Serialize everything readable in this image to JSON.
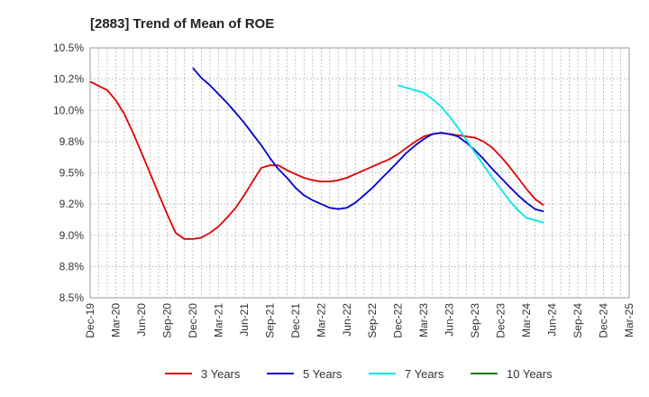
{
  "chart_data": {
    "type": "line",
    "title": "[2883]  Trend of Mean of ROE",
    "xlabel": "",
    "ylabel": "",
    "x_ticks": [
      "Dec-19",
      "Mar-20",
      "Jun-20",
      "Sep-20",
      "Dec-20",
      "Mar-21",
      "Jun-21",
      "Sep-21",
      "Dec-21",
      "Mar-22",
      "Jun-22",
      "Sep-22",
      "Dec-22",
      "Mar-23",
      "Jun-23",
      "Sep-23",
      "Dec-23",
      "Mar-24",
      "Jun-24",
      "Sep-24",
      "Dec-24",
      "Mar-25"
    ],
    "y_ticks": [
      "8.5%",
      "8.8%",
      "9.0%",
      "9.2%",
      "9.5%",
      "9.8%",
      "10.0%",
      "10.2%",
      "10.5%"
    ],
    "ylim": [
      8.5,
      10.5
    ],
    "y_tick_values": [
      8.5,
      8.75,
      9.0,
      9.25,
      9.5,
      9.75,
      10.0,
      10.25,
      10.5
    ],
    "grid": true,
    "legend_position": "bottom",
    "series": [
      {
        "name": "3 Years",
        "color": "#e00000",
        "points": [
          [
            0,
            10.23
          ],
          [
            0.67,
            10.16
          ],
          [
            1,
            10.08
          ],
          [
            1.33,
            9.97
          ],
          [
            1.67,
            9.82
          ],
          [
            2,
            9.66
          ],
          [
            2.33,
            9.5
          ],
          [
            2.67,
            9.33
          ],
          [
            3,
            9.17
          ],
          [
            3.33,
            9.02
          ],
          [
            3.67,
            8.97
          ],
          [
            4,
            8.97
          ],
          [
            4.33,
            8.98
          ],
          [
            4.67,
            9.02
          ],
          [
            5,
            9.07
          ],
          [
            5.33,
            9.14
          ],
          [
            5.67,
            9.22
          ],
          [
            6,
            9.32
          ],
          [
            6.33,
            9.43
          ],
          [
            6.67,
            9.54
          ],
          [
            7,
            9.56
          ],
          [
            7.33,
            9.56
          ],
          [
            7.67,
            9.52
          ],
          [
            8,
            9.49
          ],
          [
            8.33,
            9.46
          ],
          [
            8.67,
            9.44
          ],
          [
            9,
            9.43
          ],
          [
            9.33,
            9.43
          ],
          [
            9.67,
            9.44
          ],
          [
            10,
            9.46
          ],
          [
            10.33,
            9.49
          ],
          [
            10.67,
            9.52
          ],
          [
            11,
            9.55
          ],
          [
            11.33,
            9.58
          ],
          [
            11.67,
            9.61
          ],
          [
            12,
            9.65
          ],
          [
            12.33,
            9.7
          ],
          [
            12.67,
            9.75
          ],
          [
            13,
            9.79
          ],
          [
            13.33,
            9.81
          ],
          [
            13.67,
            9.82
          ],
          [
            14,
            9.81
          ],
          [
            14.33,
            9.8
          ],
          [
            14.67,
            9.79
          ],
          [
            15,
            9.78
          ],
          [
            15.33,
            9.75
          ],
          [
            15.67,
            9.7
          ],
          [
            16,
            9.63
          ],
          [
            16.33,
            9.55
          ],
          [
            16.67,
            9.46
          ],
          [
            17,
            9.37
          ],
          [
            17.33,
            9.29
          ],
          [
            17.67,
            9.24
          ]
        ]
      },
      {
        "name": "5 Years",
        "color": "#0000cc",
        "points": [
          [
            4,
            10.34
          ],
          [
            4.33,
            10.26
          ],
          [
            4.67,
            10.2
          ],
          [
            5,
            10.13
          ],
          [
            5.33,
            10.06
          ],
          [
            5.67,
            9.98
          ],
          [
            6,
            9.9
          ],
          [
            6.33,
            9.81
          ],
          [
            6.67,
            9.72
          ],
          [
            7,
            9.62
          ],
          [
            7.33,
            9.53
          ],
          [
            7.67,
            9.46
          ],
          [
            8,
            9.38
          ],
          [
            8.33,
            9.32
          ],
          [
            8.67,
            9.28
          ],
          [
            9,
            9.25
          ],
          [
            9.33,
            9.22
          ],
          [
            9.67,
            9.21
          ],
          [
            10,
            9.22
          ],
          [
            10.33,
            9.26
          ],
          [
            10.67,
            9.32
          ],
          [
            11,
            9.38
          ],
          [
            11.33,
            9.45
          ],
          [
            11.67,
            9.52
          ],
          [
            12,
            9.59
          ],
          [
            12.33,
            9.66
          ],
          [
            12.67,
            9.72
          ],
          [
            13,
            9.77
          ],
          [
            13.33,
            9.81
          ],
          [
            13.67,
            9.82
          ],
          [
            14,
            9.81
          ],
          [
            14.33,
            9.79
          ],
          [
            14.67,
            9.74
          ],
          [
            15,
            9.68
          ],
          [
            15.33,
            9.61
          ],
          [
            15.67,
            9.53
          ],
          [
            16,
            9.46
          ],
          [
            16.33,
            9.39
          ],
          [
            16.67,
            9.32
          ],
          [
            17,
            9.26
          ],
          [
            17.33,
            9.21
          ],
          [
            17.67,
            9.19
          ]
        ]
      },
      {
        "name": "7 Years",
        "color": "#00e5e5",
        "points": [
          [
            12,
            10.2
          ],
          [
            12.33,
            10.18
          ],
          [
            12.67,
            10.16
          ],
          [
            13,
            10.14
          ],
          [
            13.33,
            10.09
          ],
          [
            13.67,
            10.03
          ],
          [
            14,
            9.95
          ],
          [
            14.33,
            9.86
          ],
          [
            14.67,
            9.76
          ],
          [
            15,
            9.66
          ],
          [
            15.33,
            9.56
          ],
          [
            15.67,
            9.46
          ],
          [
            16,
            9.37
          ],
          [
            16.33,
            9.28
          ],
          [
            16.67,
            9.2
          ],
          [
            17,
            9.14
          ],
          [
            17.33,
            9.12
          ],
          [
            17.67,
            9.1
          ]
        ]
      },
      {
        "name": "10 Years",
        "color": "#008000",
        "points": []
      }
    ]
  }
}
